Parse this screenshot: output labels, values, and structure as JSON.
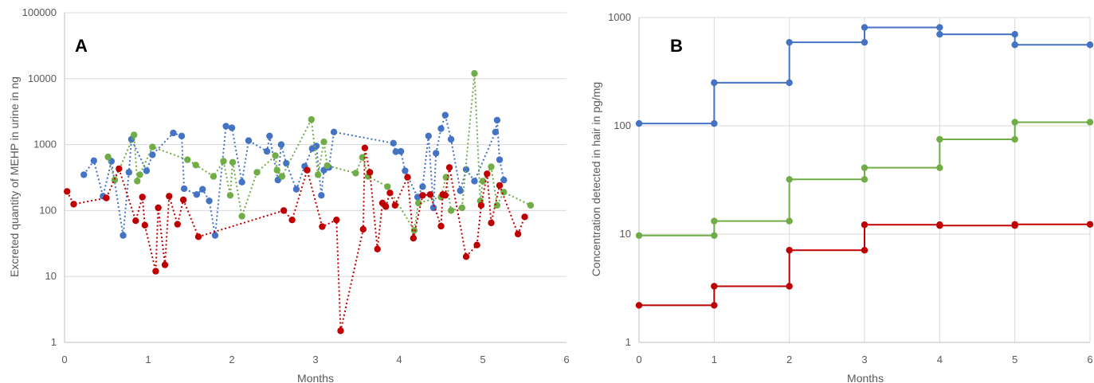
{
  "colors": {
    "blue": "#4472c4",
    "green": "#70ad47",
    "red": "#c00000"
  },
  "chart_data": [
    {
      "id": "A",
      "type": "scatter",
      "panel_label": "A",
      "xlabel": "Months",
      "ylabel": "Excreted quantity of MEHP in urine in ng",
      "xlim": [
        0,
        6
      ],
      "ylim": [
        1,
        100000
      ],
      "y_scale": "log",
      "x_ticks": [
        "0",
        "1",
        "2",
        "3",
        "4",
        "5",
        "6"
      ],
      "y_ticks": [
        "1",
        "10",
        "100",
        "1000",
        "10000",
        "100000"
      ],
      "grid": "horizontal",
      "line_style": "dotted",
      "series": [
        {
          "color": "blue",
          "x": [
            0.23,
            0.35,
            0.46,
            0.56,
            0.7,
            0.77,
            0.8,
            0.98,
            1.05,
            1.3,
            1.4,
            1.43,
            1.58,
            1.65,
            1.73,
            1.8,
            1.93,
            2.0,
            2.12,
            2.2,
            2.42,
            2.45,
            2.55,
            2.59,
            2.65,
            2.77,
            2.87,
            2.96,
            3.01,
            3.07,
            3.1,
            3.16,
            3.22,
            3.93,
            3.96,
            4.02,
            4.07,
            4.22,
            4.28,
            4.35,
            4.41,
            4.44,
            4.5,
            4.55,
            4.62,
            4.73,
            4.8,
            4.9,
            5.15,
            5.17,
            5.2,
            5.25
          ],
          "y": [
            350,
            570,
            165,
            560,
            42,
            380,
            1200,
            400,
            700,
            1500,
            1350,
            215,
            175,
            210,
            140,
            42,
            1900,
            1800,
            270,
            1150,
            790,
            1350,
            290,
            1000,
            520,
            210,
            470,
            870,
            950,
            170,
            410,
            450,
            1550,
            1050,
            780,
            790,
            400,
            160,
            230,
            1350,
            110,
            740,
            1750,
            2800,
            1200,
            200,
            420,
            280,
            1550,
            2350,
            590,
            290
          ]
        },
        {
          "color": "green",
          "x": [
            0.52,
            0.6,
            0.83,
            0.87,
            0.9,
            1.05,
            1.47,
            1.57,
            1.78,
            1.9,
            1.98,
            2.01,
            2.12,
            2.3,
            2.52,
            2.54,
            2.6,
            2.95,
            3.03,
            3.1,
            3.14,
            3.48,
            3.56,
            3.63,
            3.86,
            4.18,
            4.23,
            4.5,
            4.56,
            4.62,
            4.75,
            4.9,
            4.97,
            5.0,
            5.1,
            5.17,
            5.25,
            5.57
          ],
          "y": [
            650,
            290,
            1400,
            280,
            350,
            920,
            590,
            490,
            330,
            560,
            170,
            540,
            82,
            380,
            680,
            410,
            330,
            2400,
            350,
            1100,
            480,
            370,
            640,
            330,
            230,
            50,
            130,
            160,
            320,
            100,
            110,
            12000,
            140,
            280,
            460,
            120,
            190,
            120
          ]
        },
        {
          "color": "red",
          "x": [
            0.03,
            0.11,
            0.5,
            0.65,
            0.85,
            0.93,
            0.96,
            1.09,
            1.12,
            1.2,
            1.25,
            1.35,
            1.42,
            1.6,
            2.62,
            2.72,
            2.9,
            3.08,
            3.25,
            3.3,
            3.57,
            3.59,
            3.65,
            3.74,
            3.8,
            3.84,
            3.89,
            3.95,
            4.1,
            4.17,
            4.28,
            4.37,
            4.5,
            4.52,
            4.55,
            4.6,
            4.8,
            4.93,
            4.98,
            5.05,
            5.1,
            5.2,
            5.42,
            5.5
          ],
          "y": [
            195,
            125,
            155,
            430,
            70,
            160,
            60,
            12,
            110,
            15,
            165,
            62,
            145,
            40,
            100,
            72,
            410,
            57,
            72,
            1.5,
            52,
            890,
            380,
            26,
            130,
            115,
            185,
            120,
            320,
            38,
            170,
            175,
            58,
            175,
            170,
            450,
            20,
            30,
            120,
            360,
            65,
            240,
            44,
            80
          ]
        }
      ]
    },
    {
      "id": "B",
      "type": "line",
      "panel_label": "B",
      "xlabel": "Months",
      "ylabel": "Concentration detected in hair in pg/mg",
      "xlim": [
        0,
        6
      ],
      "ylim": [
        1,
        1000
      ],
      "y_scale": "log",
      "x_ticks": [
        "0",
        "1",
        "2",
        "3",
        "4",
        "5",
        "6"
      ],
      "y_ticks": [
        "1",
        "10",
        "100",
        "1000"
      ],
      "grid": "both",
      "line_style": "step",
      "series": [
        {
          "color": "blue",
          "steps": [
            [
              0,
              1,
              105
            ],
            [
              1,
              2,
              250
            ],
            [
              2,
              3,
              590
            ],
            [
              3,
              4,
              810
            ],
            [
              4,
              5,
              700
            ],
            [
              5,
              6,
              560
            ]
          ]
        },
        {
          "color": "green",
          "steps": [
            [
              0,
              1,
              9.7
            ],
            [
              1,
              2,
              13.2
            ],
            [
              2,
              3,
              32
            ],
            [
              3,
              4,
              41
            ],
            [
              4,
              5,
              75
            ],
            [
              5,
              6,
              108
            ]
          ]
        },
        {
          "color": "red",
          "steps": [
            [
              0,
              1,
              2.2
            ],
            [
              1,
              2,
              3.3
            ],
            [
              2,
              3,
              7.1
            ],
            [
              3,
              4,
              12.2
            ],
            [
              4,
              5,
              12
            ],
            [
              5,
              6,
              12.3
            ]
          ]
        }
      ]
    }
  ]
}
